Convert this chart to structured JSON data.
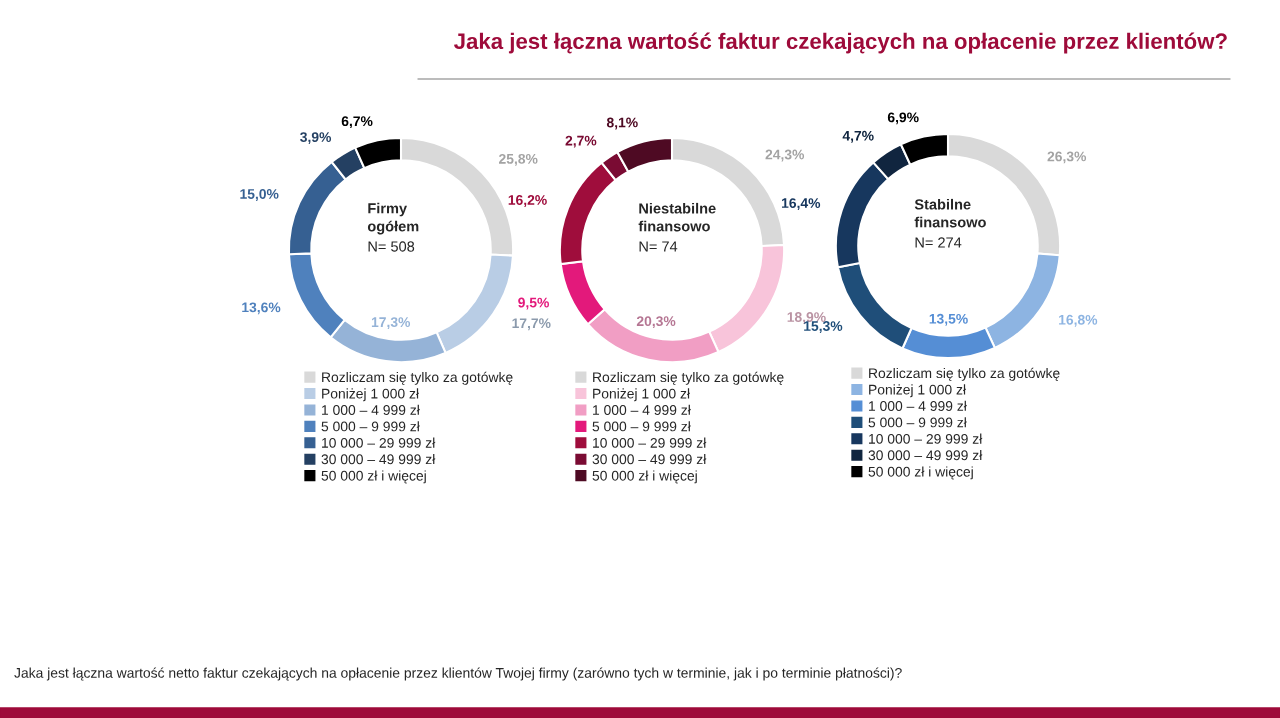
{
  "chart_data": [
    {
      "type": "donut",
      "title": "Firmy ogółem",
      "subtitle": "N= 508",
      "categories": [
        "Rozliczam się tylko za gotówkę",
        "Poniżej 1 000 zł",
        "1 000 – 4 999 zł",
        "5 000 – 9 999 zł",
        "10 000 – 29 999 zł",
        "30 000 – 49 999 zł",
        "50 000 zł i więcej"
      ],
      "values": [
        25.8,
        17.7,
        17.3,
        13.6,
        15.0,
        3.9,
        6.7
      ],
      "value_labels": [
        "25,8%",
        "17,7%",
        "17,3%",
        "13,6%",
        "15,0%",
        "3,9%",
        "6,7%"
      ],
      "colors": [
        "#d9d9d9",
        "#b9cde5",
        "#95b3d7",
        "#4f81bd",
        "#366092",
        "#244062",
        "#000000"
      ],
      "legend": "bottom",
      "annotations": [
        "Jaka jest łączna wartość faktur czekających na opłacenie przez klientów?",
        "Jaka jest łączna wartość netto faktur czekających na opłacenie przez klientów Twojej firmy (zarówno tych w terminie, jak i po terminie płatności)?"
      ]
    },
    {
      "type": "donut",
      "title": "Niestabilne finansowo",
      "subtitle": "N= 74",
      "categories": [
        "Rozliczam się tylko za gotówkę",
        "Poniżej 1 000 zł",
        "1 000 – 4 999 zł",
        "5 000 – 9 999 zł",
        "10 000 – 29 999 zł",
        "30 000 – 49 999 zł",
        "50 000 zł i więcej"
      ],
      "values": [
        24.3,
        18.9,
        20.3,
        9.5,
        16.2,
        2.7,
        8.1
      ],
      "value_labels": [
        "24,3%",
        "18,9%",
        "20,3%",
        "9,5%",
        "16,2%",
        "2,7%",
        "8,1%"
      ],
      "colors": [
        "#d9d9d9",
        "#f8c4da",
        "#f19ec4",
        "#e3197b",
        "#9f0d3c",
        "#7a0b33",
        "#4e0a23"
      ],
      "legend": "bottom"
    },
    {
      "type": "donut",
      "title": "Stabilne finansowo",
      "subtitle": "N= 274",
      "categories": [
        "Rozliczam się tylko za gotówkę",
        "Poniżej 1 000 zł",
        "1 000 – 4 999 zł",
        "5 000 – 9 999 zł",
        "10 000 – 29 999 zł",
        "30 000 – 49 999 zł",
        "50 000 zł i więcej"
      ],
      "values": [
        26.3,
        16.8,
        13.5,
        15.3,
        16.4,
        4.7,
        6.9
      ],
      "value_labels": [
        "26,3%",
        "16,8%",
        "13,5%",
        "15,3%",
        "16,4%",
        "4,7%",
        "6,9%"
      ],
      "colors": [
        "#d9d9d9",
        "#8db4e2",
        "#558ed5",
        "#1f4e79",
        "#17375e",
        "#10253f",
        "#000000"
      ],
      "legend": "bottom"
    }
  ]
}
